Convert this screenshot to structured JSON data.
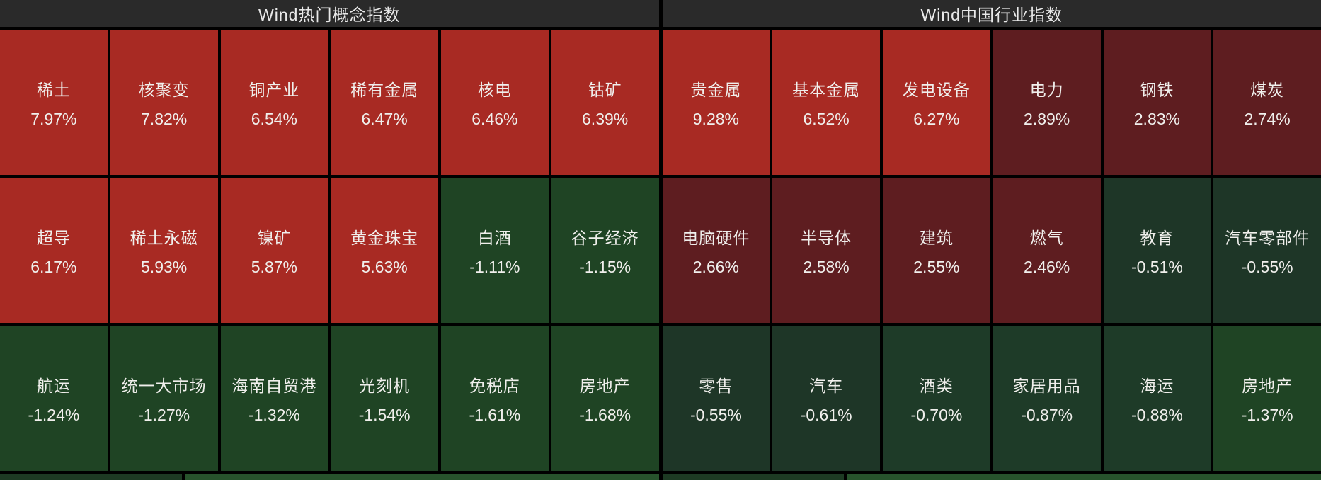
{
  "colors": {
    "strong_up_red": "#a82a23",
    "moderate_up_maroon": "#5e1d20",
    "weak_down_dark_green": "#1e3627",
    "mild_down_green": "#1e3b28",
    "down_green": "#1f4424",
    "header_bg": "#2a2a2a",
    "grid_line": "#000000",
    "text": "#f0efec"
  },
  "panels": [
    {
      "title": "Wind热门概念指数",
      "tiles": [
        {
          "name": "稀土",
          "pct": "7.97%",
          "color": "#a82a23"
        },
        {
          "name": "核聚变",
          "pct": "7.82%",
          "color": "#a82a23"
        },
        {
          "name": "铜产业",
          "pct": "6.54%",
          "color": "#a82a23"
        },
        {
          "name": "稀有金属",
          "pct": "6.47%",
          "color": "#a82a23"
        },
        {
          "name": "核电",
          "pct": "6.46%",
          "color": "#a82a23"
        },
        {
          "name": "钴矿",
          "pct": "6.39%",
          "color": "#a82a23"
        },
        {
          "name": "超导",
          "pct": "6.17%",
          "color": "#a82a23"
        },
        {
          "name": "稀土永磁",
          "pct": "5.93%",
          "color": "#a82a23"
        },
        {
          "name": "镍矿",
          "pct": "5.87%",
          "color": "#a82a23"
        },
        {
          "name": "黄金珠宝",
          "pct": "5.63%",
          "color": "#a82a23"
        },
        {
          "name": "白酒",
          "pct": "-1.11%",
          "color": "#1f4424"
        },
        {
          "name": "谷子经济",
          "pct": "-1.15%",
          "color": "#1f4424"
        },
        {
          "name": "航运",
          "pct": "-1.24%",
          "color": "#1f4424"
        },
        {
          "name": "统一大市场",
          "pct": "-1.27%",
          "color": "#1f4424"
        },
        {
          "name": "海南自贸港",
          "pct": "-1.32%",
          "color": "#1f4424"
        },
        {
          "name": "光刻机",
          "pct": "-1.54%",
          "color": "#1f4424"
        },
        {
          "name": "免税店",
          "pct": "-1.61%",
          "color": "#1f4424"
        },
        {
          "name": "房地产",
          "pct": "-1.68%",
          "color": "#1f4424"
        }
      ],
      "partial_tiles": [
        {
          "color": "#1d3a23"
        },
        {
          "color": "#27532c"
        }
      ]
    },
    {
      "title": "Wind中国行业指数",
      "tiles": [
        {
          "name": "贵金属",
          "pct": "9.28%",
          "color": "#a82a23"
        },
        {
          "name": "基本金属",
          "pct": "6.52%",
          "color": "#a82a23"
        },
        {
          "name": "发电设备",
          "pct": "6.27%",
          "color": "#a82a23"
        },
        {
          "name": "电力",
          "pct": "2.89%",
          "color": "#5e1d20"
        },
        {
          "name": "钢铁",
          "pct": "2.83%",
          "color": "#5e1d20"
        },
        {
          "name": "煤炭",
          "pct": "2.74%",
          "color": "#5e1d20"
        },
        {
          "name": "电脑硬件",
          "pct": "2.66%",
          "color": "#5e1d20"
        },
        {
          "name": "半导体",
          "pct": "2.58%",
          "color": "#5e1d20"
        },
        {
          "name": "建筑",
          "pct": "2.55%",
          "color": "#5e1d20"
        },
        {
          "name": "燃气",
          "pct": "2.46%",
          "color": "#5e1d20"
        },
        {
          "name": "教育",
          "pct": "-0.51%",
          "color": "#1e3627"
        },
        {
          "name": "汽车零部件",
          "pct": "-0.55%",
          "color": "#1e3627"
        },
        {
          "name": "零售",
          "pct": "-0.55%",
          "color": "#1e3627"
        },
        {
          "name": "汽车",
          "pct": "-0.61%",
          "color": "#1e3627"
        },
        {
          "name": "酒类",
          "pct": "-0.70%",
          "color": "#1e3b28"
        },
        {
          "name": "家居用品",
          "pct": "-0.87%",
          "color": "#1e3b28"
        },
        {
          "name": "海运",
          "pct": "-0.88%",
          "color": "#1e3b28"
        },
        {
          "name": "房地产",
          "pct": "-1.37%",
          "color": "#1f4424"
        }
      ],
      "partial_tiles": [
        {
          "color": "#1d3a23"
        },
        {
          "color": "#27532c"
        }
      ]
    }
  ],
  "chart_data": [
    {
      "type": "heatmap",
      "title": "Wind热门概念指数",
      "legend_position": "none",
      "grid": true,
      "categories": [
        "稀土",
        "核聚变",
        "铜产业",
        "稀有金属",
        "核电",
        "钴矿",
        "超导",
        "稀土永磁",
        "镍矿",
        "黄金珠宝",
        "白酒",
        "谷子经济",
        "航运",
        "统一大市场",
        "海南自贸港",
        "光刻机",
        "免税店",
        "房地产"
      ],
      "values": [
        7.97,
        7.82,
        6.54,
        6.47,
        6.46,
        6.39,
        6.17,
        5.93,
        5.87,
        5.63,
        -1.11,
        -1.15,
        -1.24,
        -1.27,
        -1.32,
        -1.54,
        -1.61,
        -1.68
      ],
      "unit": "%",
      "layout": "6x3 grid, red = up, green = down, shade by magnitude"
    },
    {
      "type": "heatmap",
      "title": "Wind中国行业指数",
      "legend_position": "none",
      "grid": true,
      "categories": [
        "贵金属",
        "基本金属",
        "发电设备",
        "电力",
        "钢铁",
        "煤炭",
        "电脑硬件",
        "半导体",
        "建筑",
        "燃气",
        "教育",
        "汽车零部件",
        "零售",
        "汽车",
        "酒类",
        "家居用品",
        "海运",
        "房地产"
      ],
      "values": [
        9.28,
        6.52,
        6.27,
        2.89,
        2.83,
        2.74,
        2.66,
        2.58,
        2.55,
        2.46,
        -0.51,
        -0.55,
        -0.55,
        -0.61,
        -0.7,
        -0.87,
        -0.88,
        -1.37
      ],
      "unit": "%",
      "layout": "6x3 grid, red = up, green = down, shade by magnitude"
    }
  ]
}
